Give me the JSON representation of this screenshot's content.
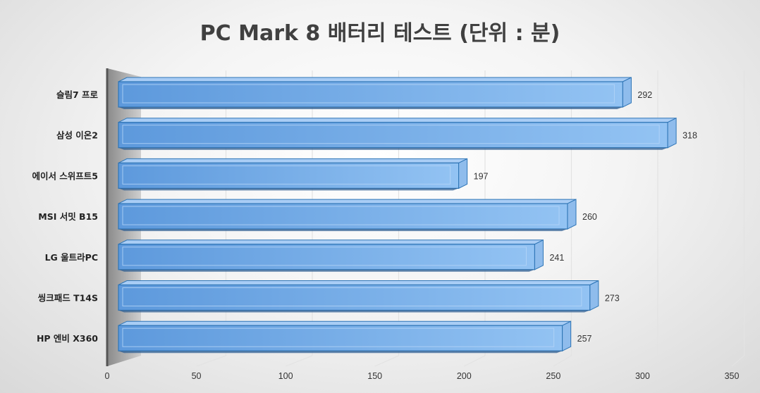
{
  "chart_data": {
    "type": "bar",
    "orientation": "horizontal",
    "title": "PC Mark 8 배터리 테스트 (단위 : 분)",
    "categories": [
      "슬림7 프로",
      "삼성 이온2",
      "에이서 스위프트5",
      "MSI 서밋 B15",
      "LG 울트라PC",
      "씽크패드 T14S",
      "HP 엔비 X360"
    ],
    "values": [
      292,
      318,
      197,
      260,
      241,
      273,
      257
    ],
    "value_labels": [
      "292",
      "318",
      "197",
      "260",
      "241",
      "273",
      "257"
    ],
    "xlim": [
      0,
      350
    ],
    "xticks": [
      "0",
      "50",
      "100",
      "150",
      "200",
      "250",
      "300",
      "350"
    ],
    "grid": true,
    "legend": "none",
    "bar_color": "#6fa8e6",
    "bar_edge_color": "#2e75b6",
    "style": "3d"
  }
}
